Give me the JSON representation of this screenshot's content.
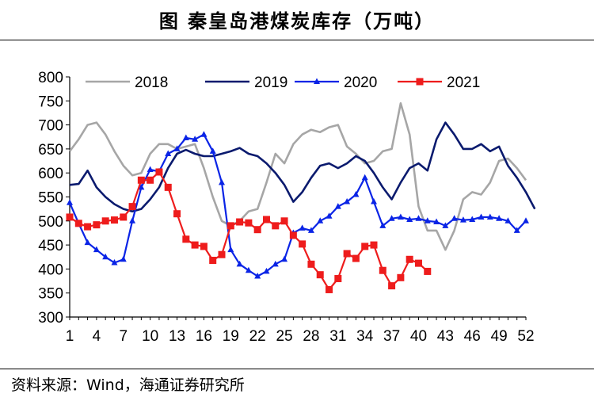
{
  "title": "图  秦皇岛港煤炭库存（万吨）",
  "source": "资料来源：Wind，海通证券研究所",
  "chart_data": {
    "type": "line",
    "title": "图  秦皇岛港煤炭库存（万吨）",
    "xlabel": "",
    "ylabel": "",
    "x_ticks": [
      1,
      4,
      7,
      10,
      13,
      16,
      19,
      22,
      25,
      28,
      31,
      34,
      37,
      40,
      43,
      46,
      49,
      52
    ],
    "xlim": [
      1,
      52
    ],
    "ylim": [
      300,
      800
    ],
    "y_ticks": [
      300,
      350,
      400,
      450,
      500,
      550,
      600,
      650,
      700,
      750,
      800
    ],
    "grid": false,
    "legend": "top",
    "series": [
      {
        "name": "2018",
        "color": "#a6a6a6",
        "marker": "none",
        "values": [
          645,
          670,
          700,
          705,
          680,
          645,
          615,
          595,
          600,
          640,
          660,
          660,
          650,
          655,
          660,
          610,
          550,
          500,
          490,
          500,
          520,
          525,
          580,
          640,
          620,
          660,
          680,
          690,
          685,
          695,
          700,
          655,
          640,
          620,
          625,
          645,
          650,
          745,
          680,
          530,
          480,
          480,
          440,
          480,
          545,
          560,
          555,
          580,
          625,
          630,
          610,
          585
        ]
      },
      {
        "name": "2019",
        "color": "#0a1a6e",
        "marker": "none",
        "values": [
          575,
          577,
          605,
          570,
          550,
          535,
          525,
          520,
          525,
          545,
          570,
          610,
          640,
          648,
          640,
          635,
          635,
          640,
          645,
          652,
          640,
          635,
          620,
          600,
          575,
          540,
          560,
          590,
          615,
          620,
          610,
          620,
          635,
          625,
          600,
          570,
          545,
          580,
          610,
          620,
          605,
          670,
          705,
          680,
          650,
          650,
          660,
          645,
          655,
          615,
          590,
          560,
          525
        ]
      },
      {
        "name": "2020",
        "color": "#0a24e6",
        "marker": "triangle",
        "values": [
          538,
          495,
          455,
          440,
          425,
          413,
          420,
          500,
          570,
          607,
          603,
          640,
          650,
          673,
          670,
          680,
          645,
          580,
          440,
          410,
          397,
          385,
          395,
          410,
          420,
          475,
          485,
          480,
          500,
          510,
          530,
          540,
          555,
          590,
          540,
          490,
          505,
          508,
          503,
          505,
          500,
          498,
          490,
          505,
          502,
          503,
          508,
          508,
          505,
          500,
          480,
          500
        ]
      },
      {
        "name": "2021",
        "color": "#ee1c1c",
        "marker": "square",
        "values": [
          508,
          495,
          488,
          492,
          500,
          502,
          508,
          530,
          585,
          585,
          602,
          570,
          515,
          462,
          450,
          447,
          418,
          430,
          490,
          498,
          496,
          482,
          503,
          490,
          500,
          470,
          452,
          410,
          388,
          357,
          380,
          432,
          422,
          447,
          450,
          397,
          365,
          382,
          420,
          412,
          395
        ]
      }
    ]
  }
}
